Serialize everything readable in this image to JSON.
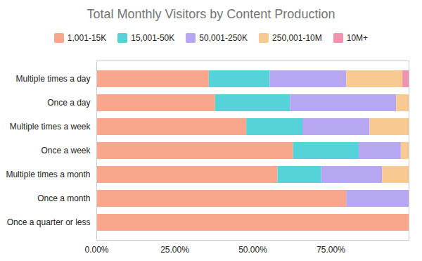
{
  "chart_data": {
    "type": "bar",
    "title": "Total Monthly Visitors by Content Production",
    "orientation": "horizontal",
    "stacked": true,
    "grid": false,
    "legend": "top",
    "categories": [
      "Multiple times a day",
      "Once a day",
      "Multiple times a week",
      "Once a week",
      "Multiple times a month",
      "Once a month",
      "Once a quarter or less"
    ],
    "series": [
      {
        "name": "1,001-15K",
        "color": "#f8a78c",
        "values": [
          36,
          38,
          48,
          63,
          58,
          80,
          100
        ]
      },
      {
        "name": "15,001-50K",
        "color": "#55d3d9",
        "values": [
          19.5,
          24,
          18,
          21,
          14,
          0,
          0
        ]
      },
      {
        "name": "50,001-250K",
        "color": "#b7a6f2",
        "values": [
          24.5,
          34,
          21.5,
          13.5,
          19.5,
          20,
          0
        ]
      },
      {
        "name": "250,001-10M",
        "color": "#f8ca92",
        "values": [
          18,
          4,
          12.5,
          2.5,
          8.5,
          0,
          0
        ]
      },
      {
        "name": "10M+",
        "color": "#ef93ae",
        "values": [
          2,
          0,
          0,
          0,
          0,
          0,
          0
        ]
      }
    ],
    "xlim": [
      0,
      100
    ],
    "xticks": [
      {
        "value": 0,
        "label": "0.00%"
      },
      {
        "value": 25,
        "label": "25.00%"
      },
      {
        "value": 50,
        "label": "50.00%"
      },
      {
        "value": 75,
        "label": "75.00%"
      }
    ]
  }
}
